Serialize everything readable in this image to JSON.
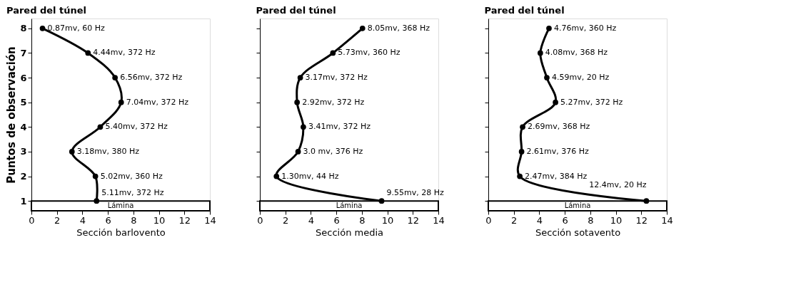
{
  "chart_data": [
    {
      "type": "line",
      "title": "Pared del túnel",
      "xlabel": "Sección barlovento",
      "ylabel": "Puntos de observación",
      "x": [
        0.87,
        4.44,
        6.56,
        7.04,
        5.4,
        3.18,
        5.02,
        5.11
      ],
      "series": [
        {
          "color": "#000000",
          "values": [
            8,
            7,
            6,
            5,
            4,
            3,
            2,
            1
          ]
        }
      ],
      "annotations": [
        {
          "text": "0.87mv, 60 Hz",
          "x": 0.87,
          "y": 8
        },
        {
          "text": "4.44mv, 372 Hz",
          "x": 4.44,
          "y": 7
        },
        {
          "text": "6.56mv, 372 Hz",
          "x": 6.56,
          "y": 6
        },
        {
          "text": "7.04mv, 372 Hz",
          "x": 7.04,
          "y": 5
        },
        {
          "text": "5.40mv, 372 Hz",
          "x": 5.4,
          "y": 4
        },
        {
          "text": "3.18mv, 380 Hz",
          "x": 3.18,
          "y": 3
        },
        {
          "text": "5.02mv, 360 Hz",
          "x": 5.02,
          "y": 2
        },
        {
          "text": "5.11mv, 372 Hz",
          "x": 5.11,
          "y": 1
        }
      ],
      "xlim": [
        0,
        14
      ],
      "xticks": [
        0,
        2,
        4,
        6,
        8,
        10,
        12,
        14
      ],
      "ylim": [
        0.6,
        8.4
      ],
      "yticks": [
        1,
        2,
        3,
        4,
        5,
        6,
        7,
        8
      ],
      "bands": [
        {
          "axis": "y",
          "from": 0.6,
          "to": 1,
          "label": "Lámina",
          "color": "#ffffff"
        }
      ],
      "grid": false,
      "marker": "circle",
      "line_style": "solid"
    },
    {
      "type": "line",
      "title": "Pared del túnel",
      "xlabel": "Sección media",
      "x": [
        8.05,
        5.73,
        3.17,
        2.92,
        3.41,
        3.0,
        1.3,
        9.55
      ],
      "series": [
        {
          "color": "#000000",
          "values": [
            8,
            7,
            6,
            5,
            4,
            3,
            2,
            1
          ]
        }
      ],
      "annotations": [
        {
          "text": "8.05mv, 368 Hz",
          "x": 8.05,
          "y": 8
        },
        {
          "text": "5.73mv, 360 Hz",
          "x": 5.73,
          "y": 7
        },
        {
          "text": "3.17mv, 372 Hz",
          "x": 3.17,
          "y": 6
        },
        {
          "text": "2.92mv, 372 Hz",
          "x": 2.92,
          "y": 5
        },
        {
          "text": "3.41mv, 372 Hz",
          "x": 3.41,
          "y": 4
        },
        {
          "text": "3.0 mv, 376 Hz",
          "x": 3.0,
          "y": 3
        },
        {
          "text": "1.30mv, 44 Hz",
          "x": 1.3,
          "y": 2
        },
        {
          "text": "9.55mv, 28 Hz",
          "x": 9.55,
          "y": 1
        }
      ],
      "xlim": [
        0,
        14
      ],
      "xticks": [
        0,
        2,
        4,
        6,
        8,
        10,
        12,
        14
      ],
      "ylim": [
        0.6,
        8.4
      ],
      "yticks": [
        1,
        2,
        3,
        4,
        5,
        6,
        7,
        8
      ],
      "tick_labels": "x",
      "bands": [
        {
          "axis": "y",
          "from": 0.6,
          "to": 1,
          "label": "Lámina",
          "color": "#ffffff"
        }
      ],
      "grid": false,
      "marker": "circle",
      "line_style": "solid"
    },
    {
      "type": "line",
      "title": "Pared del túnel",
      "xlabel": "Sección sotavento",
      "x": [
        4.76,
        4.08,
        4.59,
        5.27,
        2.69,
        2.61,
        2.47,
        12.4
      ],
      "series": [
        {
          "color": "#000000",
          "values": [
            8,
            7,
            6,
            5,
            4,
            3,
            2,
            1
          ]
        }
      ],
      "annotations": [
        {
          "text": "4.76mv, 360 Hz",
          "x": 4.76,
          "y": 8
        },
        {
          "text": "4.08mv, 368 Hz",
          "x": 4.08,
          "y": 7
        },
        {
          "text": "4.59mv, 20 Hz",
          "x": 4.59,
          "y": 6
        },
        {
          "text": "5.27mv, 372 Hz",
          "x": 5.27,
          "y": 5
        },
        {
          "text": "2.69mv, 368 Hz",
          "x": 2.69,
          "y": 4
        },
        {
          "text": "2.61mv, 376 Hz",
          "x": 2.61,
          "y": 3
        },
        {
          "text": "2.47mv, 384 Hz",
          "x": 2.47,
          "y": 2
        },
        {
          "text": "12.4mv, 20 Hz",
          "x": 12.4,
          "y": 1
        }
      ],
      "xlim": [
        0,
        14
      ],
      "xticks": [
        0,
        2,
        4,
        6,
        8,
        10,
        12,
        14
      ],
      "ylim": [
        0.6,
        8.4
      ],
      "yticks": [
        1,
        2,
        3,
        4,
        5,
        6,
        7,
        8
      ],
      "tick_labels": "x",
      "bands": [
        {
          "axis": "y",
          "from": 0.6,
          "to": 1,
          "label": "Lámina",
          "color": "#ffffff"
        }
      ],
      "grid": false,
      "marker": "circle",
      "line_style": "solid"
    }
  ]
}
